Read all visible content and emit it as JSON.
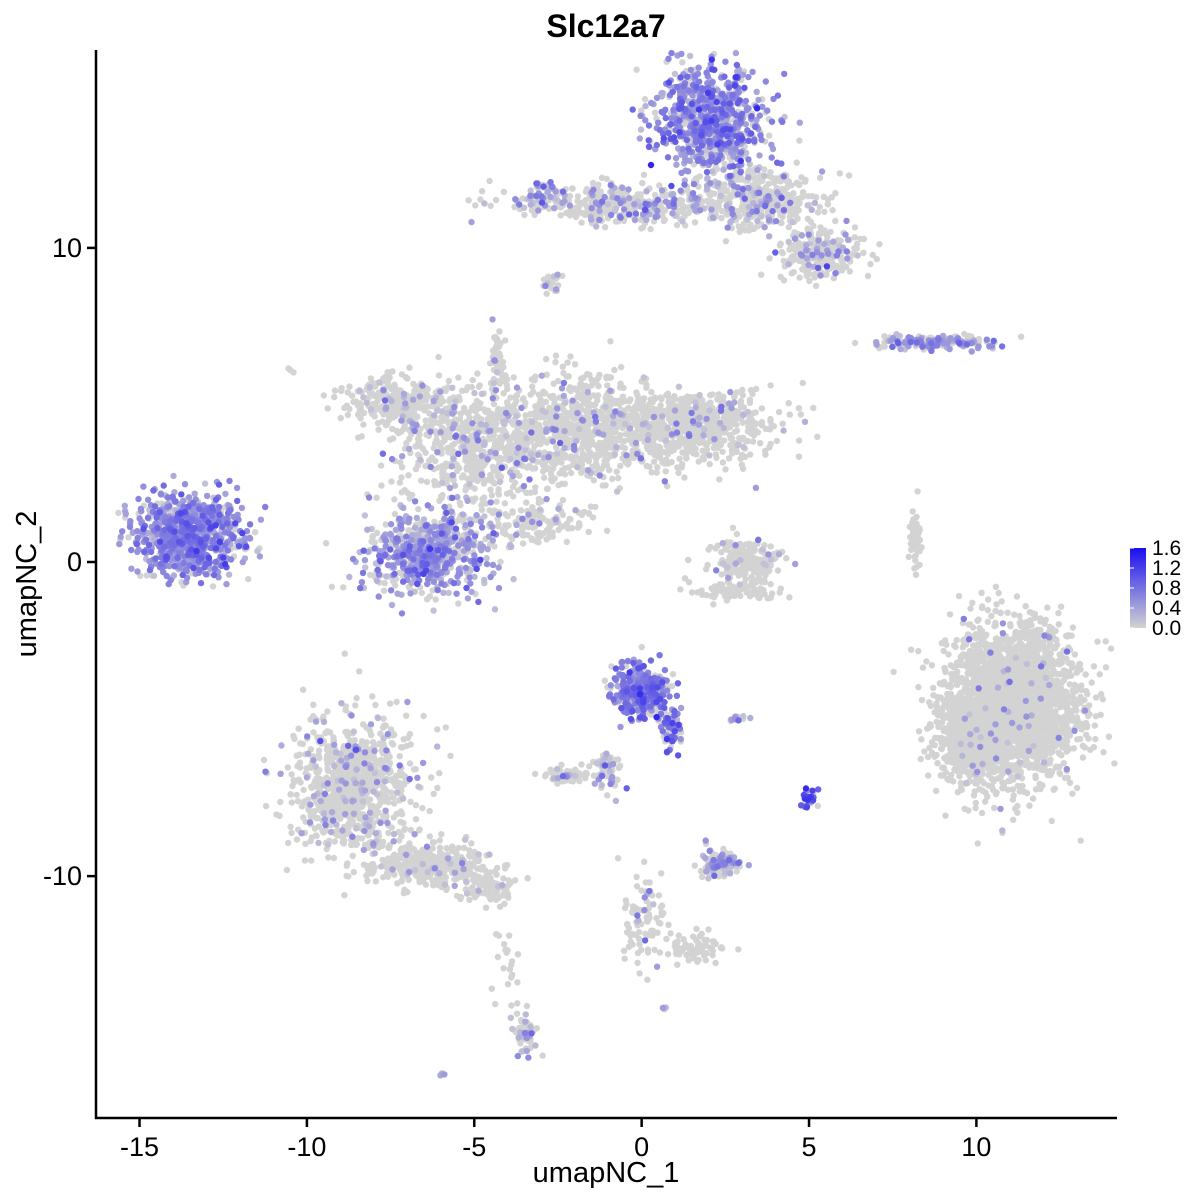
{
  "chart_data": {
    "type": "scatter",
    "title": "Slc12a7",
    "xlabel": "umapNC_1",
    "ylabel": "umapNC_2",
    "xlim": [
      -16.3,
      14.2
    ],
    "ylim": [
      -17.7,
      16.3
    ],
    "x_ticks": [
      -15,
      -10,
      -5,
      0,
      5,
      10
    ],
    "x_tick_labels": [
      "-15",
      "-10",
      "-5",
      "0",
      "5",
      "10"
    ],
    "y_ticks": [
      -10,
      0,
      10
    ],
    "y_tick_labels": [
      "-10",
      "0",
      "10"
    ],
    "grid": false,
    "legend_position": "right",
    "color_scale": {
      "low_color": "#d3d3d3",
      "high_color": "#1a0ff0",
      "min": 0.0,
      "max": 1.6,
      "breaks": [
        0.0,
        0.4,
        0.8,
        1.2,
        1.6
      ],
      "labels": [
        "0.0",
        "0.4",
        "0.8",
        "1.2",
        "1.6"
      ]
    },
    "clusters": [
      {
        "cx": -13.5,
        "cy": 0.9,
        "sx": 1.0,
        "sy": 0.85,
        "n": 900,
        "expr_frac": 0.85,
        "expr_mean": 0.55
      },
      {
        "cx": -6.3,
        "cy": 0.3,
        "sx": 1.3,
        "sy": 0.85,
        "n": 650,
        "expr_frac": 0.7,
        "expr_mean": 0.45
      },
      {
        "cx": -5.0,
        "cy": 3.6,
        "sx": 1.6,
        "sy": 1.3,
        "n": 650,
        "expr_frac": 0.15,
        "expr_mean": 0.35
      },
      {
        "cx": -7.3,
        "cy": 5.1,
        "sx": 1.1,
        "sy": 0.55,
        "n": 280,
        "expr_frac": 0.12,
        "expr_mean": 0.3
      },
      {
        "cx": -4.3,
        "cy": 6.4,
        "sx": 0.12,
        "sy": 0.7,
        "n": 60,
        "expr_frac": 0.1,
        "expr_mean": 0.3
      },
      {
        "cx": -1.8,
        "cy": 4.3,
        "sx": 1.6,
        "sy": 1.1,
        "n": 700,
        "expr_frac": 0.1,
        "expr_mean": 0.35
      },
      {
        "cx": 1.6,
        "cy": 4.3,
        "sx": 1.6,
        "sy": 0.8,
        "n": 700,
        "expr_frac": 0.08,
        "expr_mean": 0.35
      },
      {
        "cx": -3.1,
        "cy": 1.2,
        "sx": 1.0,
        "sy": 0.4,
        "n": 120,
        "expr_frac": 0.12,
        "expr_mean": 0.3
      },
      {
        "cx": 2.1,
        "cy": 14.1,
        "sx": 1.1,
        "sy": 1.1,
        "n": 800,
        "expr_frac": 0.7,
        "expr_mean": 0.6
      },
      {
        "cx": 3.6,
        "cy": 11.6,
        "sx": 1.2,
        "sy": 0.6,
        "n": 400,
        "expr_frac": 0.2,
        "expr_mean": 0.4
      },
      {
        "cx": 5.3,
        "cy": 9.8,
        "sx": 0.8,
        "sy": 0.5,
        "n": 250,
        "expr_frac": 0.25,
        "expr_mean": 0.4
      },
      {
        "cx": -0.5,
        "cy": 11.4,
        "sx": 2.1,
        "sy": 0.4,
        "n": 400,
        "expr_frac": 0.25,
        "expr_mean": 0.4
      },
      {
        "cx": -2.8,
        "cy": 11.7,
        "sx": 0.35,
        "sy": 0.35,
        "n": 50,
        "expr_frac": 0.6,
        "expr_mean": 0.5
      },
      {
        "cx": -2.7,
        "cy": 8.9,
        "sx": 0.2,
        "sy": 0.25,
        "n": 25,
        "expr_frac": 0.2,
        "expr_mean": 0.3
      },
      {
        "cx": 8.8,
        "cy": 7.0,
        "sx": 1.2,
        "sy": 0.15,
        "n": 180,
        "expr_frac": 0.45,
        "expr_mean": 0.45
      },
      {
        "cx": 11.1,
        "cy": -4.5,
        "sx": 1.3,
        "sy": 1.6,
        "n": 2600,
        "expr_frac": 0.02,
        "expr_mean": 0.35
      },
      {
        "cx": 9.8,
        "cy": -5.8,
        "sx": 0.7,
        "sy": 0.9,
        "n": 400,
        "expr_frac": 0.02,
        "expr_mean": 0.35
      },
      {
        "cx": 8.2,
        "cy": 0.8,
        "sx": 0.12,
        "sy": 0.7,
        "n": 60,
        "expr_frac": 0.0,
        "expr_mean": 0.0
      },
      {
        "cx": 3.1,
        "cy": 0.0,
        "sx": 0.65,
        "sy": 0.5,
        "n": 200,
        "expr_frac": 0.1,
        "expr_mean": 0.3
      },
      {
        "cx": 2.8,
        "cy": -0.9,
        "sx": 0.9,
        "sy": 0.2,
        "n": 100,
        "expr_frac": 0.0,
        "expr_mean": 0.0
      },
      {
        "cx": 0.0,
        "cy": -4.1,
        "sx": 0.55,
        "sy": 0.55,
        "n": 350,
        "expr_frac": 0.75,
        "expr_mean": 0.7
      },
      {
        "cx": 0.9,
        "cy": -5.3,
        "sx": 0.2,
        "sy": 0.5,
        "n": 70,
        "expr_frac": 0.6,
        "expr_mean": 0.8
      },
      {
        "cx": -1.0,
        "cy": -6.6,
        "sx": 0.3,
        "sy": 0.5,
        "n": 60,
        "expr_frac": 0.4,
        "expr_mean": 0.4
      },
      {
        "cx": -2.3,
        "cy": -6.8,
        "sx": 0.4,
        "sy": 0.15,
        "n": 60,
        "expr_frac": 0.1,
        "expr_mean": 0.3
      },
      {
        "cx": 2.8,
        "cy": -5.0,
        "sx": 0.25,
        "sy": 0.06,
        "n": 15,
        "expr_frac": 0.6,
        "expr_mean": 0.4
      },
      {
        "cx": 5.0,
        "cy": -7.5,
        "sx": 0.12,
        "sy": 0.2,
        "n": 30,
        "expr_frac": 0.7,
        "expr_mean": 1.0
      },
      {
        "cx": 2.3,
        "cy": -9.6,
        "sx": 0.4,
        "sy": 0.3,
        "n": 140,
        "expr_frac": 0.4,
        "expr_mean": 0.35
      },
      {
        "cx": 0.1,
        "cy": -11.4,
        "sx": 0.4,
        "sy": 1.0,
        "n": 90,
        "expr_frac": 0.05,
        "expr_mean": 0.3
      },
      {
        "cx": 1.7,
        "cy": -12.3,
        "sx": 0.6,
        "sy": 0.3,
        "n": 70,
        "expr_frac": 0.0,
        "expr_mean": 0.0
      },
      {
        "cx": -8.6,
        "cy": -7.2,
        "sx": 1.2,
        "sy": 1.5,
        "n": 900,
        "expr_frac": 0.12,
        "expr_mean": 0.35
      },
      {
        "cx": -6.2,
        "cy": -9.7,
        "sx": 1.2,
        "sy": 0.45,
        "n": 350,
        "expr_frac": 0.08,
        "expr_mean": 0.3
      },
      {
        "cx": -4.5,
        "cy": -10.4,
        "sx": 0.5,
        "sy": 0.3,
        "n": 80,
        "expr_frac": 0.06,
        "expr_mean": 0.3
      },
      {
        "cx": -3.5,
        "cy": -15.0,
        "sx": 0.25,
        "sy": 0.5,
        "n": 60,
        "expr_frac": 0.3,
        "expr_mean": 0.35
      },
      {
        "cx": -4.1,
        "cy": -12.5,
        "sx": 0.3,
        "sy": 1.0,
        "n": 20,
        "expr_frac": 0.0,
        "expr_mean": 0.0
      },
      {
        "cx": -6.0,
        "cy": -16.3,
        "sx": 0.08,
        "sy": 0.05,
        "n": 4,
        "expr_frac": 1.0,
        "expr_mean": 0.3
      },
      {
        "cx": 0.7,
        "cy": -14.2,
        "sx": 0.08,
        "sy": 0.05,
        "n": 4,
        "expr_frac": 0.5,
        "expr_mean": 0.3
      },
      {
        "cx": -10.5,
        "cy": 6.1,
        "sx": 0.06,
        "sy": 0.06,
        "n": 3,
        "expr_frac": 0.0,
        "expr_mean": 0.0
      }
    ]
  }
}
